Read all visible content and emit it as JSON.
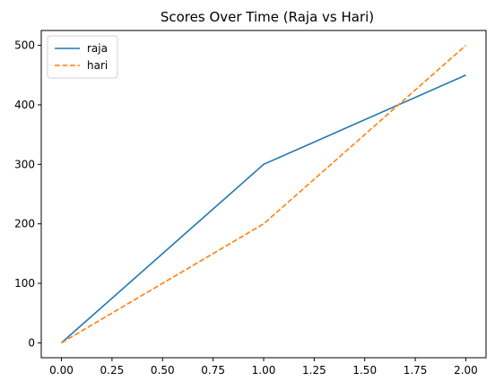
{
  "chart_data": {
    "type": "line",
    "title": "Scores Over Time (Raja vs Hari)",
    "xlabel": "",
    "ylabel": "",
    "xlim": [
      -0.1,
      2.1
    ],
    "ylim": [
      -25,
      525
    ],
    "x_ticks": [
      0,
      0.25,
      0.5,
      0.75,
      1,
      1.25,
      1.5,
      1.75,
      2
    ],
    "x_tick_labels": [
      "0.00",
      "0.25",
      "0.50",
      "0.75",
      "1.00",
      "1.25",
      "1.50",
      "1.75",
      "2.00"
    ],
    "y_ticks": [
      0,
      100,
      200,
      300,
      400,
      500
    ],
    "y_tick_labels": [
      "0",
      "100",
      "200",
      "300",
      "400",
      "500"
    ],
    "grid": false,
    "legend_position": "top-left",
    "x": [
      0,
      1,
      2
    ],
    "series": [
      {
        "name": "raja",
        "values": [
          0,
          300,
          450
        ],
        "color": "#1f77b4",
        "style": "solid"
      },
      {
        "name": "hari",
        "values": [
          0,
          200,
          500
        ],
        "color": "#ff7f0e",
        "style": "dashed"
      }
    ]
  }
}
